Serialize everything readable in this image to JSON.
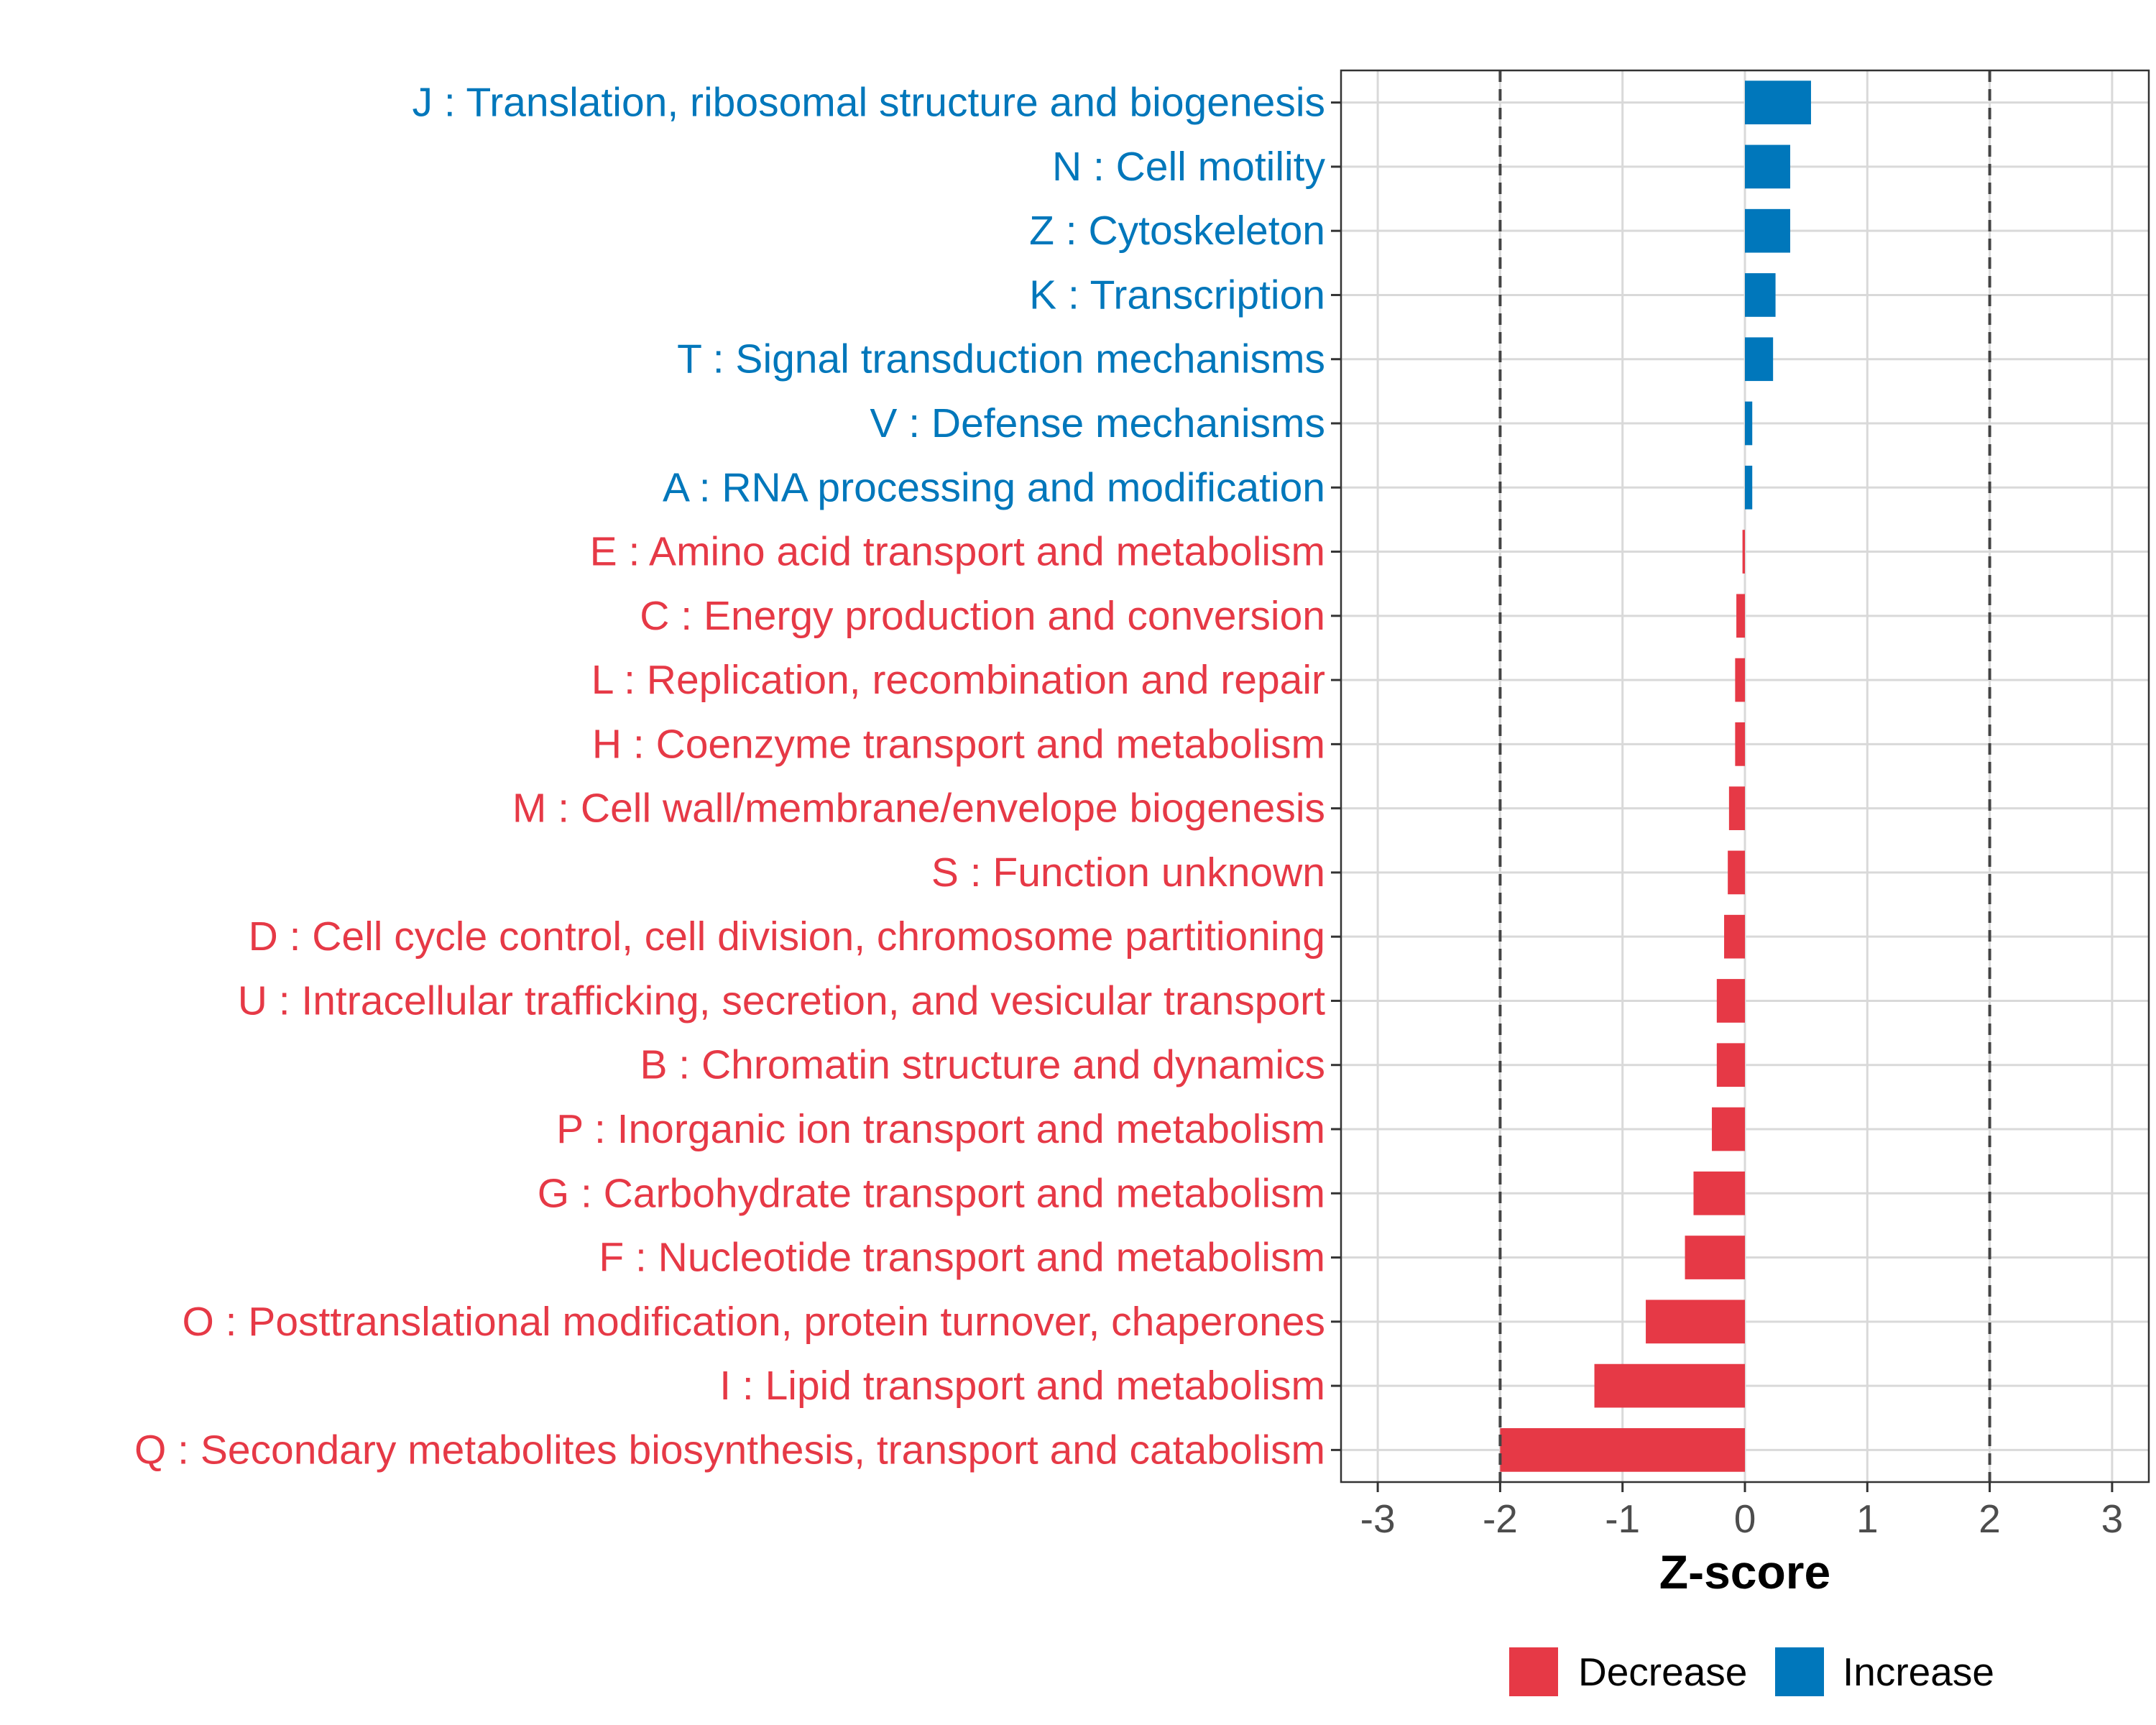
{
  "chart_data": {
    "type": "bar",
    "orientation": "horizontal",
    "title": "",
    "xlabel": "Z-score",
    "ylabel": "",
    "xlim": [
      -3.3,
      3.3
    ],
    "xticks": [
      -3,
      -2,
      -1,
      0,
      1,
      2,
      3
    ],
    "xtick_labels": [
      "-3",
      "-2",
      "-1",
      "0",
      "1",
      "2",
      "3"
    ],
    "reference_lines": [
      -2,
      2
    ],
    "grid": true,
    "colors": {
      "Decrease": "#e63946",
      "Increase": "#0077bb"
    },
    "categories": [
      "J : Translation, ribosomal structure and biogenesis",
      "N : Cell motility",
      "Z : Cytoskeleton",
      "K : Transcription",
      "T : Signal transduction mechanisms",
      "V : Defense mechanisms",
      "A : RNA processing and modification",
      "E : Amino acid transport and metabolism",
      "C : Energy production and conversion",
      "L : Replication, recombination and repair",
      "H : Coenzyme transport and metabolism",
      "M : Cell wall/membrane/envelope biogenesis",
      "S : Function unknown",
      "D : Cell cycle control, cell division, chromosome partitioning",
      "U : Intracellular trafficking, secretion, and vesicular transport",
      "B : Chromatin structure and dynamics",
      "P : Inorganic ion transport and metabolism",
      "G : Carbohydrate transport and metabolism",
      "F : Nucleotide transport and metabolism",
      "O : Posttranslational modification, protein turnover, chaperones",
      "I : Lipid transport and metabolism",
      "Q : Secondary metabolites biosynthesis, transport and catabolism"
    ],
    "values": [
      0.54,
      0.37,
      0.37,
      0.25,
      0.23,
      0.06,
      0.06,
      -0.02,
      -0.07,
      -0.08,
      -0.08,
      -0.13,
      -0.14,
      -0.17,
      -0.23,
      -0.23,
      -0.27,
      -0.42,
      -0.49,
      -0.81,
      -1.23,
      -2.0
    ],
    "groups": [
      "Increase",
      "Increase",
      "Increase",
      "Increase",
      "Increase",
      "Increase",
      "Increase",
      "Decrease",
      "Decrease",
      "Decrease",
      "Decrease",
      "Decrease",
      "Decrease",
      "Decrease",
      "Decrease",
      "Decrease",
      "Decrease",
      "Decrease",
      "Decrease",
      "Decrease",
      "Decrease",
      "Decrease"
    ],
    "legend": {
      "position": "bottom",
      "entries": [
        "Decrease",
        "Increase"
      ]
    }
  }
}
